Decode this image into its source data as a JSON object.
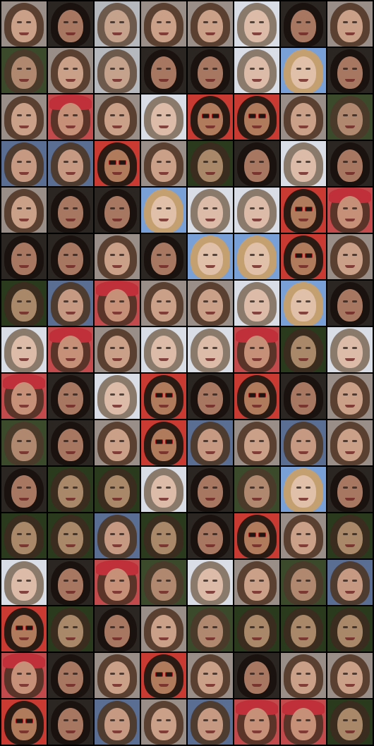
{
  "grid": {
    "rows": 16,
    "cols": 8,
    "background": "#000000",
    "tile_kinds": {
      "A": {
        "bg": "#9a8f88",
        "hair": "#5a4030",
        "face": "#caa088"
      },
      "B": {
        "bg": "#2c2622",
        "hair": "#1a120e",
        "face": "#a77762"
      },
      "C": {
        "bg": "#b5b8bc",
        "hair": "#6e5a4c",
        "face": "#c4a28c"
      },
      "D": {
        "bg": "#d9dde6",
        "hair": "#8a7a6c",
        "face": "#dcbca8"
      },
      "E": {
        "bg": "#3c4a2c",
        "hair": "#4a3a2a",
        "face": "#b08870"
      },
      "F": {
        "bg": "#5a6e94",
        "hair": "#4e3c30",
        "face": "#c69a82"
      },
      "G": {
        "bg": "#c83a32",
        "hair": "#2a1a14",
        "face": "#b07a5c"
      },
      "H": {
        "bg": "#7aa0d8",
        "hair": "#c4a070",
        "face": "#e0c0a8"
      },
      "I": {
        "bg": "#c24a4c",
        "hair": "#5a3428",
        "face": "#c69078"
      },
      "J": {
        "bg": "#2a3a1c",
        "hair": "#3a2c1e",
        "face": "#a88868"
      }
    },
    "rows_data": [
      [
        "A",
        "B",
        "C",
        "A",
        "A",
        "D",
        "B",
        "A"
      ],
      [
        "E",
        "A",
        "C",
        "B",
        "B",
        "D",
        "H",
        "B"
      ],
      [
        "A",
        "I",
        "A",
        "D",
        "G",
        "G",
        "A",
        "E"
      ],
      [
        "F",
        "F",
        "G",
        "A",
        "J",
        "B",
        "D",
        "B"
      ],
      [
        "A",
        "B",
        "B",
        "H",
        "D",
        "D",
        "G",
        "I"
      ],
      [
        "B",
        "B",
        "A",
        "B",
        "H",
        "H",
        "G",
        "A"
      ],
      [
        "J",
        "F",
        "I",
        "A",
        "A",
        "D",
        "H",
        "B"
      ],
      [
        "D",
        "I",
        "A",
        "D",
        "D",
        "I",
        "J",
        "D"
      ],
      [
        "I",
        "B",
        "D",
        "G",
        "B",
        "G",
        "B",
        "A"
      ],
      [
        "E",
        "B",
        "A",
        "G",
        "F",
        "A",
        "F",
        "A"
      ],
      [
        "B",
        "J",
        "J",
        "D",
        "B",
        "E",
        "H",
        "B"
      ],
      [
        "J",
        "J",
        "F",
        "J",
        "B",
        "G",
        "A",
        "J"
      ],
      [
        "D",
        "B",
        "I",
        "E",
        "D",
        "A",
        "E",
        "F"
      ],
      [
        "G",
        "J",
        "B",
        "A",
        "E",
        "J",
        "J",
        "J"
      ],
      [
        "I",
        "B",
        "A",
        "G",
        "A",
        "B",
        "A",
        "A"
      ],
      [
        "G",
        "B",
        "F",
        "A",
        "F",
        "I",
        "I",
        "J"
      ]
    ],
    "glasses_tiles": [
      "G"
    ],
    "hat_tiles": [
      "I"
    ]
  }
}
